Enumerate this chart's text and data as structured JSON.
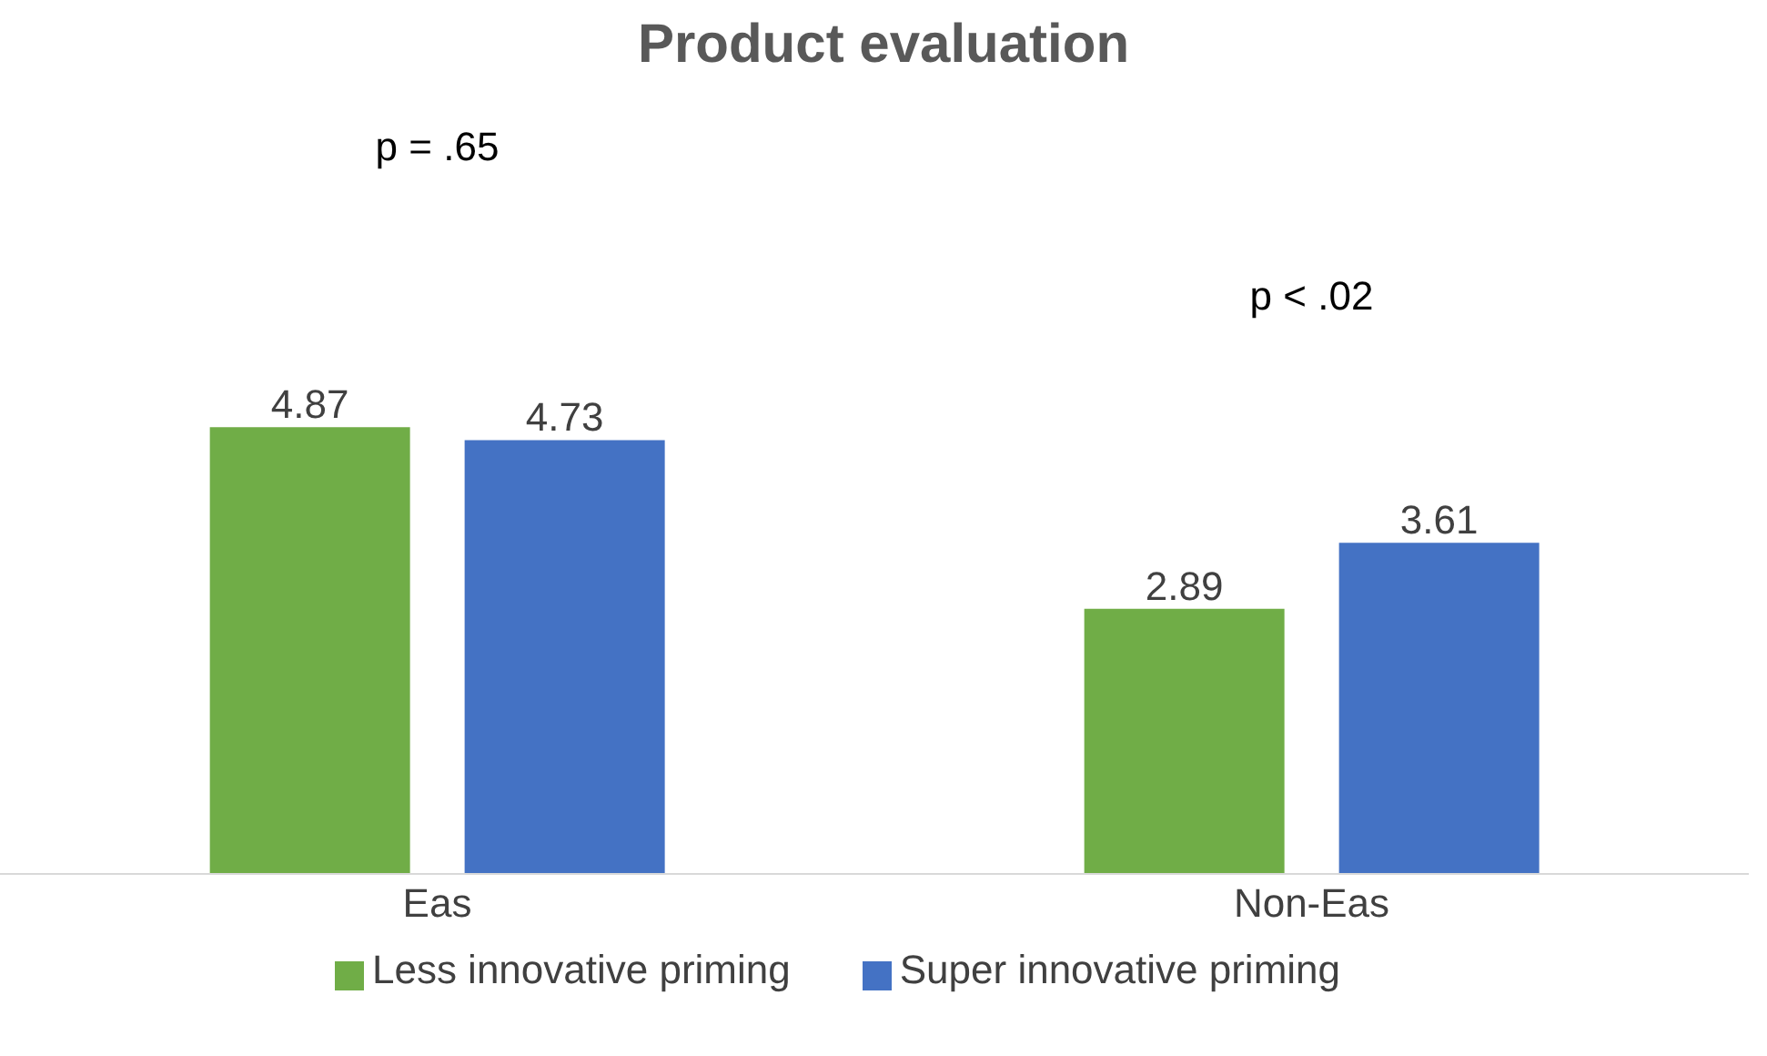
{
  "chart_data": {
    "type": "bar",
    "title": "Product evaluation",
    "categories": [
      "Eas",
      "Non-Eas"
    ],
    "series": [
      {
        "name": "Less innovative priming",
        "color": "#70ad47",
        "values": [
          4.87,
          2.89
        ]
      },
      {
        "name": "Super innovative priming",
        "color": "#4472c4",
        "values": [
          4.73,
          3.61
        ]
      }
    ],
    "tick_labels": "x",
    "data_labels": true,
    "grid": false,
    "legend": "bottom",
    "annotations": [
      "p = .65",
      "p < .02"
    ]
  }
}
